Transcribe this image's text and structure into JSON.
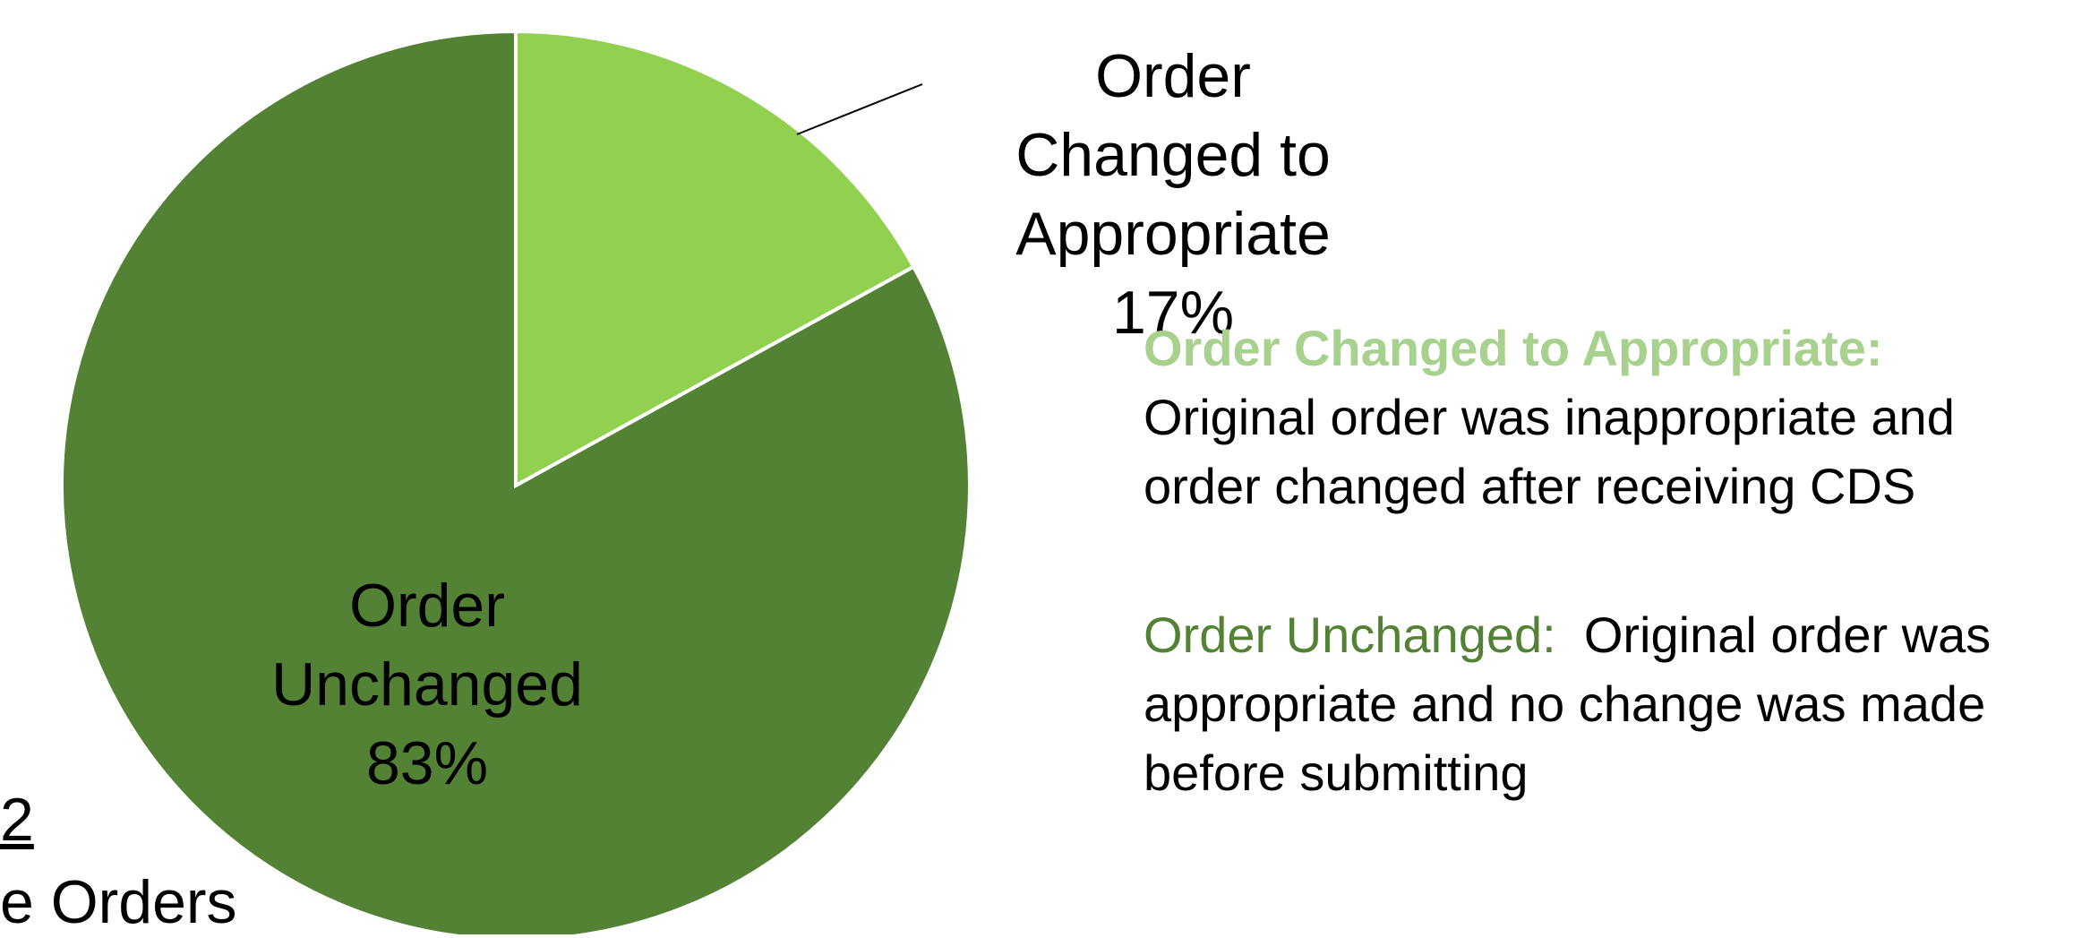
{
  "chart_data": {
    "type": "pie",
    "categories": [
      "Order Changed to Appropriate",
      "Order Unchanged"
    ],
    "values": [
      17,
      83
    ],
    "value_labels": [
      "17%",
      "83%"
    ],
    "colors": [
      "#92d050",
      "#548235"
    ],
    "start_angle": 0,
    "direction": "clockwise",
    "notes": [
      {
        "term": "Order Changed to Appropriate:",
        "text": "Original order was inappropriate and order changed after receiving CDS",
        "color": "#a9d18e",
        "bold": true
      },
      {
        "term": "Order Unchanged:",
        "text": "Original order was appropriate and no change was made before submitting",
        "color": "#548235",
        "bold": false
      }
    ],
    "annotations": [
      "2",
      "e Orders"
    ]
  }
}
